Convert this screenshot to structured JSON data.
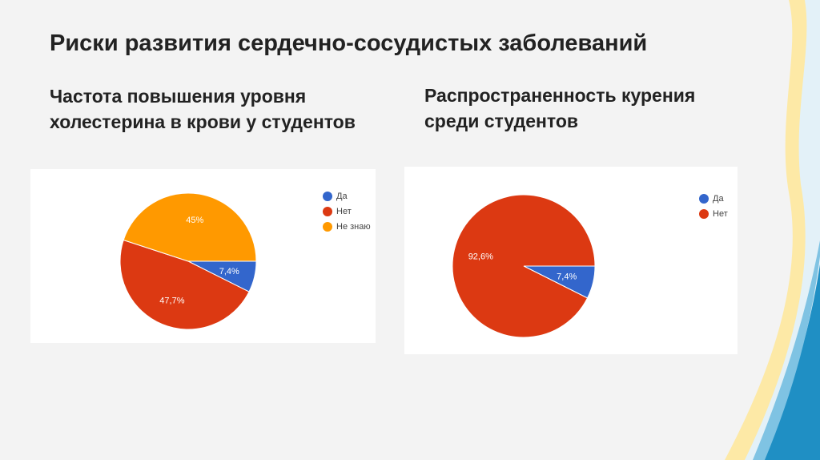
{
  "slide": {
    "title": "Риски развития сердечно-сосудистых заболеваний",
    "subtitle_left": "Частота повышения уровня холестерина в крови у студентов",
    "subtitle_right": "Распространенность курения среди студентов"
  },
  "colors": {
    "blue": "#3366cc",
    "red": "#dc3912",
    "orange": "#ff9900",
    "wave_light": "#fde9a6",
    "wave_blue": "#1f8fc4"
  },
  "chart_data": [
    {
      "type": "pie",
      "title": "",
      "legend_position": "right",
      "categories": [
        "Да",
        "Нет",
        "Не знаю"
      ],
      "values": [
        7.4,
        47.7,
        45
      ],
      "labels": [
        "7,4%",
        "47,7%",
        "45%"
      ],
      "colors": [
        "#3366cc",
        "#dc3912",
        "#ff9900"
      ]
    },
    {
      "type": "pie",
      "title": "",
      "legend_position": "right",
      "categories": [
        "Да",
        "Нет"
      ],
      "values": [
        7.4,
        92.6
      ],
      "labels": [
        "7,4%",
        "92,6%"
      ],
      "colors": [
        "#3366cc",
        "#dc3912"
      ]
    }
  ]
}
